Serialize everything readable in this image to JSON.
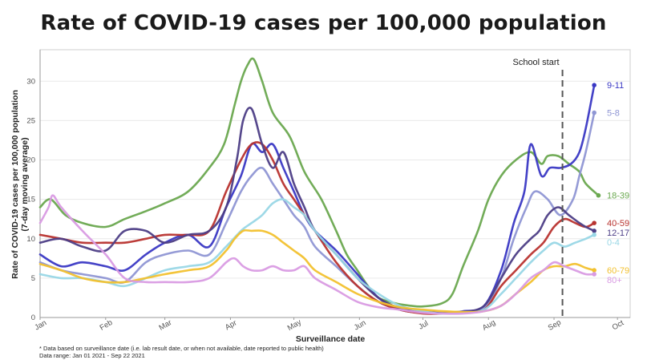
{
  "chart_data": {
    "type": "line",
    "title": "Rate of COVID-19 cases per 100,000 population",
    "ylabel_line1": "Rate of COVID-19 cases per 100,000 population",
    "ylabel_line2": "(7-day moving average)",
    "xlabel": "Surveillance date",
    "ylim": [
      0,
      34
    ],
    "xlim": [
      0,
      279
    ],
    "yticks": [
      0,
      5,
      10,
      15,
      20,
      25,
      30
    ],
    "xticks": [
      {
        "label": "Jan",
        "day": 0
      },
      {
        "label": "Feb",
        "day": 31
      },
      {
        "label": "Mar",
        "day": 59
      },
      {
        "label": "Apr",
        "day": 90
      },
      {
        "label": "May",
        "day": 120
      },
      {
        "label": "Jun",
        "day": 151
      },
      {
        "label": "Jul",
        "day": 181
      },
      {
        "label": "Aug",
        "day": 212
      },
      {
        "label": "Sep",
        "day": 243
      },
      {
        "label": "Oct",
        "day": 273
      }
    ],
    "annotation": {
      "label": "School start",
      "day": 247
    },
    "series": [
      {
        "name": "18-39",
        "color": "#6aa84f",
        "days": [
          0,
          5,
          12,
          20,
          31,
          40,
          50,
          59,
          70,
          80,
          87,
          92,
          95,
          98,
          101,
          105,
          110,
          118,
          125,
          133,
          140,
          145,
          150,
          155,
          160,
          168,
          175,
          181,
          190,
          195,
          200,
          207,
          212,
          218,
          225,
          232,
          237,
          240,
          245,
          250,
          255,
          258,
          264
        ],
        "values": [
          14,
          15,
          13,
          12,
          11.5,
          12.5,
          13.5,
          14.5,
          16,
          19,
          22,
          27,
          30,
          32,
          32.8,
          30,
          26,
          23,
          18.5,
          15,
          11,
          8,
          6,
          4,
          2.5,
          1.8,
          1.5,
          1.4,
          1.8,
          3,
          6.5,
          11,
          15,
          18,
          20,
          21,
          19.5,
          20.5,
          20.5,
          19.5,
          18.5,
          17,
          15.5
        ]
      },
      {
        "name": "9-11",
        "color": "#3a38c4",
        "days": [
          0,
          10,
          20,
          31,
          40,
          50,
          59,
          70,
          80,
          88,
          95,
          100,
          105,
          110,
          115,
          120,
          125,
          130,
          140,
          150,
          160,
          170,
          181,
          190,
          200,
          210,
          218,
          224,
          229,
          232,
          237,
          241,
          246,
          251,
          255,
          258,
          262
        ],
        "values": [
          8,
          6.5,
          7,
          6.5,
          6,
          8,
          9.5,
          10.5,
          9,
          14,
          18,
          22,
          21,
          22,
          19,
          16,
          13,
          11,
          8.5,
          5.5,
          2.5,
          1,
          0.6,
          0.6,
          0.8,
          1.5,
          6,
          12,
          16,
          22,
          18,
          19,
          19,
          19.5,
          21,
          24,
          29.5
        ]
      },
      {
        "name": "5-8",
        "color": "#8f96d4",
        "days": [
          0,
          10,
          20,
          31,
          40,
          50,
          59,
          70,
          80,
          88,
          95,
          100,
          105,
          110,
          115,
          120,
          125,
          130,
          140,
          150,
          160,
          170,
          181,
          190,
          200,
          210,
          218,
          224,
          230,
          234,
          240,
          246,
          252,
          255,
          258,
          262
        ],
        "values": [
          7,
          6,
          5.5,
          5,
          4.5,
          7,
          8,
          8.5,
          8,
          12,
          16,
          18,
          19,
          17,
          15,
          13,
          11.5,
          9,
          6.5,
          4,
          2,
          1,
          0.6,
          0.5,
          0.7,
          1.2,
          5,
          10,
          14,
          16,
          15,
          13,
          15,
          18,
          21,
          26
        ]
      },
      {
        "name": "40-59",
        "color": "#b8332f",
        "days": [
          0,
          10,
          20,
          31,
          40,
          50,
          59,
          70,
          80,
          88,
          95,
          100,
          105,
          110,
          115,
          120,
          125,
          130,
          140,
          150,
          160,
          170,
          181,
          190,
          200,
          210,
          218,
          225,
          232,
          238,
          243,
          248,
          253,
          258,
          262
        ],
        "values": [
          10.5,
          10,
          9.5,
          9.5,
          9.5,
          10,
          10.5,
          10.5,
          11,
          16,
          20,
          22,
          22,
          20,
          17,
          15,
          13,
          11,
          7,
          4,
          2,
          1,
          0.5,
          0.5,
          0.7,
          1,
          4,
          6,
          8,
          9.5,
          11.5,
          12.5,
          12,
          11.5,
          12
        ]
      },
      {
        "name": "12-17",
        "color": "#4d3e86",
        "days": [
          0,
          10,
          20,
          31,
          40,
          50,
          59,
          70,
          80,
          88,
          93,
          96,
          100,
          105,
          110,
          115,
          120,
          125,
          130,
          140,
          150,
          160,
          170,
          181,
          190,
          200,
          210,
          218,
          225,
          232,
          236,
          240,
          245,
          250,
          255,
          258,
          262
        ],
        "values": [
          9.5,
          10,
          9,
          8.5,
          11,
          11,
          9.5,
          10.5,
          11,
          14,
          20,
          25,
          26.5,
          22,
          19,
          21,
          17,
          14,
          11,
          8,
          5,
          2.5,
          1.2,
          0.8,
          0.6,
          0.7,
          1.5,
          5,
          8,
          10,
          11,
          13,
          14,
          13,
          12,
          11.5,
          11
        ]
      },
      {
        "name": "0-4",
        "color": "#99d7e6",
        "days": [
          0,
          10,
          20,
          31,
          40,
          50,
          59,
          70,
          80,
          88,
          95,
          100,
          105,
          110,
          115,
          120,
          125,
          130,
          140,
          150,
          160,
          170,
          181,
          190,
          200,
          210,
          218,
          225,
          232,
          238,
          243,
          248,
          253,
          258,
          262
        ],
        "values": [
          5.5,
          5,
          5,
          4.5,
          4,
          5,
          6,
          6.5,
          7,
          9,
          11,
          12,
          13,
          14.5,
          15,
          14,
          13,
          11,
          8,
          5,
          3,
          1.5,
          0.8,
          0.5,
          0.6,
          1,
          3,
          5,
          7,
          8.5,
          9.5,
          9,
          9.5,
          10,
          10.5
        ]
      },
      {
        "name": "60-79",
        "color": "#f2c12e",
        "days": [
          0,
          10,
          20,
          31,
          40,
          50,
          59,
          70,
          80,
          88,
          92,
          96,
          100,
          105,
          110,
          115,
          120,
          125,
          130,
          140,
          150,
          160,
          170,
          181,
          190,
          200,
          210,
          218,
          225,
          232,
          238,
          243,
          248,
          253,
          258,
          262
        ],
        "values": [
          6.8,
          6,
          5,
          4.5,
          4.5,
          5,
          5.5,
          6,
          6.5,
          8.5,
          10,
          11,
          11,
          11,
          10.5,
          9.5,
          8.5,
          7.5,
          6,
          4.5,
          3,
          2,
          1.3,
          1,
          0.8,
          0.7,
          0.8,
          1.5,
          3,
          4.5,
          6,
          6.5,
          6.5,
          6.8,
          6.3,
          6
        ]
      },
      {
        "name": "80+",
        "color": "#d99be3",
        "days": [
          0,
          4,
          6,
          10,
          20,
          31,
          40,
          50,
          59,
          70,
          80,
          88,
          92,
          96,
          100,
          105,
          110,
          115,
          120,
          125,
          130,
          140,
          150,
          160,
          170,
          181,
          190,
          200,
          210,
          218,
          225,
          232,
          238,
          243,
          248,
          253,
          258,
          262
        ],
        "values": [
          12,
          14,
          15.5,
          14,
          11,
          8,
          5,
          4.5,
          4.5,
          4.5,
          5,
          7,
          7.5,
          6.5,
          6,
          6,
          6.5,
          6,
          6,
          6.5,
          5,
          3.5,
          2,
          1.3,
          1,
          0.6,
          0.5,
          0.5,
          0.8,
          1.5,
          3,
          5,
          6,
          7,
          6.5,
          6,
          5.5,
          5.5
        ]
      }
    ]
  },
  "footnotes": {
    "line1": "* Data based on surveillance date (i.e. lab result date, or when not available, date reported to public health)",
    "line2": "Data range: Jan 01 2021 - Sep 22 2021"
  }
}
